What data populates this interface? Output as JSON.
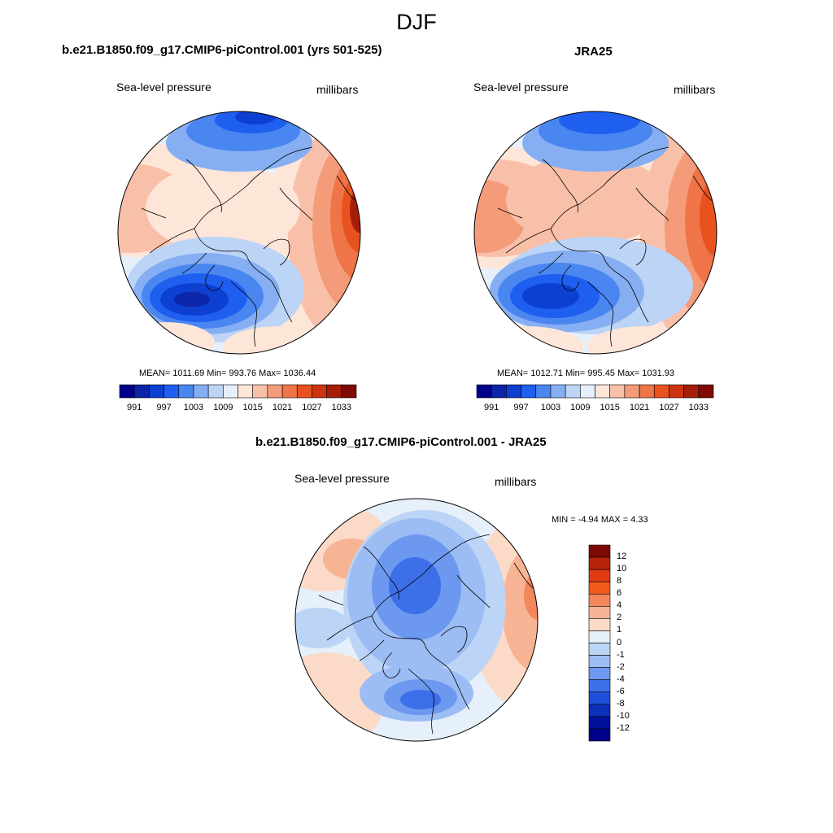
{
  "season": "DJF",
  "panels": [
    {
      "id": "model",
      "title": "b.e21.B1850.f09_g17.CMIP6-piControl.001 (yrs 501-525)",
      "variable": "Sea-level pressure",
      "units": "millibars",
      "stats": "MEAN= 1011.69  Min= 993.76  Max= 1036.44",
      "colorbar_ticks": [
        "991",
        "997",
        "1003",
        "1009",
        "1015",
        "1021",
        "1027",
        "1033"
      ]
    },
    {
      "id": "obs",
      "title": "JRA25",
      "variable": "Sea-level pressure",
      "units": "millibars",
      "stats": "MEAN= 1012.71  Min= 995.45  Max= 1031.93",
      "colorbar_ticks": [
        "991",
        "997",
        "1003",
        "1009",
        "1015",
        "1021",
        "1027",
        "1033"
      ]
    },
    {
      "id": "diff",
      "title": "b.e21.B1850.f09_g17.CMIP6-piControl.001 - JRA25",
      "variable": "Sea-level pressure",
      "units": "millibars",
      "stats": "MIN =  -4.94 MAX =   4.33",
      "colorbar_ticks": [
        "12",
        "10",
        "8",
        "6",
        "4",
        "2",
        "1",
        "0",
        "-1",
        "-2",
        "-4",
        "-6",
        "-8",
        "-10",
        "-12"
      ]
    }
  ],
  "colors": {
    "abs_scale": [
      "#00008c",
      "#0b24a8",
      "#0d3fd0",
      "#1f5ff0",
      "#4a86f0",
      "#86aef2",
      "#bcd4f6",
      "#e6f0fb",
      "#fde5d8",
      "#f8c0a8",
      "#f49b7a",
      "#ef7448",
      "#e8521f",
      "#cc3410",
      "#a61e08",
      "#7e0a03"
    ],
    "diff_scale": [
      "#7e0a03",
      "#b8220a",
      "#e03c12",
      "#f25a1e",
      "#f4865c",
      "#f7b494",
      "#fbdac8",
      "#e6f0fb",
      "#bcd4f6",
      "#9cbcf4",
      "#6c98f0",
      "#3d6fe8",
      "#1f4ed8",
      "#0d30b8",
      "#03109a",
      "#00008c"
    ]
  }
}
